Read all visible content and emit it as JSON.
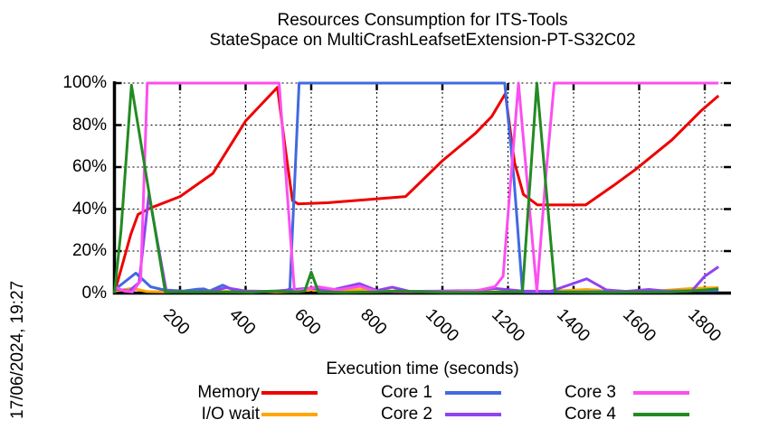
{
  "title": {
    "line1": "Resources Consumption for ITS-Tools",
    "line2": "StateSpace on MultiCrashLeafsetExtension-PT-S32C02"
  },
  "date_label": "17/06/2024, 19:27",
  "chart_data": {
    "type": "line",
    "title": "Resources Consumption for ITS-Tools — StateSpace on MultiCrashLeafsetExtension-PT-S32C02",
    "xlabel": "Execution time (seconds)",
    "ylabel": "",
    "xlim": [
      0,
      1880
    ],
    "ylim": [
      0,
      100
    ],
    "grid": true,
    "legend_position": "below",
    "x_ticks": [
      200,
      400,
      600,
      800,
      1000,
      1200,
      1400,
      1600,
      1800
    ],
    "y_ticks": [
      "0%",
      "20%",
      "40%",
      "60%",
      "80%",
      "100%"
    ],
    "y_tick_values": [
      0,
      20,
      40,
      60,
      80,
      100
    ],
    "series": [
      {
        "name": "Memory",
        "color": "#ee0000",
        "points": [
          [
            0,
            0
          ],
          [
            25,
            14
          ],
          [
            50,
            28
          ],
          [
            72,
            37.5
          ],
          [
            110,
            40.5
          ],
          [
            200,
            46
          ],
          [
            300,
            57
          ],
          [
            400,
            82
          ],
          [
            455,
            91
          ],
          [
            497,
            98
          ],
          [
            520,
            70
          ],
          [
            543,
            44
          ],
          [
            560,
            42.5
          ],
          [
            650,
            43
          ],
          [
            810,
            45
          ],
          [
            888,
            46
          ],
          [
            1000,
            63
          ],
          [
            1100,
            76
          ],
          [
            1150,
            84
          ],
          [
            1192,
            95
          ],
          [
            1220,
            62
          ],
          [
            1247,
            47
          ],
          [
            1290,
            42
          ],
          [
            1437,
            42
          ],
          [
            1520,
            51
          ],
          [
            1590,
            59
          ],
          [
            1700,
            73
          ],
          [
            1790,
            87
          ],
          [
            1842,
            94
          ]
        ]
      },
      {
        "name": "I/O wait",
        "color": "#ffa500",
        "points": [
          [
            0,
            1
          ],
          [
            55,
            2.2
          ],
          [
            100,
            0.7
          ],
          [
            160,
            0.5
          ],
          [
            230,
            1
          ],
          [
            300,
            0.7
          ],
          [
            420,
            1
          ],
          [
            490,
            0.5
          ],
          [
            560,
            0.7
          ],
          [
            600,
            1.6
          ],
          [
            680,
            1
          ],
          [
            748,
            1.6
          ],
          [
            850,
            1
          ],
          [
            1000,
            0.6
          ],
          [
            1100,
            0.5
          ],
          [
            1190,
            0.7
          ],
          [
            1290,
            0.5
          ],
          [
            1440,
            1.7
          ],
          [
            1530,
            0.6
          ],
          [
            1650,
            1
          ],
          [
            1760,
            2.2
          ],
          [
            1842,
            2.6
          ]
        ]
      },
      {
        "name": "Core 1",
        "color": "#4169e1",
        "points": [
          [
            0,
            1.5
          ],
          [
            65,
            9.5
          ],
          [
            110,
            3
          ],
          [
            150,
            1.5
          ],
          [
            210,
            1
          ],
          [
            250,
            1.8
          ],
          [
            273,
            2
          ],
          [
            290,
            1
          ],
          [
            330,
            3.8
          ],
          [
            370,
            1
          ],
          [
            420,
            0.8
          ],
          [
            470,
            0.8
          ],
          [
            520,
            1
          ],
          [
            535,
            2
          ],
          [
            563,
            100
          ],
          [
            1190,
            100
          ],
          [
            1218,
            55
          ],
          [
            1244,
            0.5
          ],
          [
            1400,
            0.5
          ],
          [
            1600,
            0.8
          ],
          [
            1842,
            1.2
          ]
        ]
      },
      {
        "name": "Core 2",
        "color": "#9143ef",
        "points": [
          [
            0,
            2
          ],
          [
            45,
            1
          ],
          [
            75,
            5
          ],
          [
            105,
            47
          ],
          [
            158,
            1
          ],
          [
            220,
            0.6
          ],
          [
            300,
            1
          ],
          [
            340,
            2.6
          ],
          [
            400,
            1
          ],
          [
            480,
            0.8
          ],
          [
            600,
            2.4
          ],
          [
            650,
            1
          ],
          [
            747,
            4.5
          ],
          [
            800,
            1.2
          ],
          [
            847,
            2.8
          ],
          [
            900,
            0.8
          ],
          [
            1000,
            1
          ],
          [
            1100,
            1.2
          ],
          [
            1160,
            2.2
          ],
          [
            1244,
            1
          ],
          [
            1330,
            0.8
          ],
          [
            1440,
            6.8
          ],
          [
            1500,
            1.5
          ],
          [
            1560,
            0.8
          ],
          [
            1630,
            1.7
          ],
          [
            1690,
            0.8
          ],
          [
            1760,
            1
          ],
          [
            1800,
            8
          ],
          [
            1842,
            12.5
          ]
        ]
      },
      {
        "name": "Core 3",
        "color": "#fb4ff0",
        "points": [
          [
            0,
            3
          ],
          [
            30,
            1
          ],
          [
            55,
            0.5
          ],
          [
            80,
            6
          ],
          [
            100,
            100
          ],
          [
            502,
            100
          ],
          [
            549,
            0.8
          ],
          [
            620,
            3
          ],
          [
            680,
            1.5
          ],
          [
            748,
            3.2
          ],
          [
            800,
            0.8
          ],
          [
            900,
            0.6
          ],
          [
            1000,
            0.6
          ],
          [
            1100,
            1
          ],
          [
            1160,
            3
          ],
          [
            1185,
            8
          ],
          [
            1232,
            100
          ],
          [
            1260,
            50
          ],
          [
            1288,
            1
          ],
          [
            1315,
            55
          ],
          [
            1341,
            100
          ],
          [
            1842,
            100
          ]
        ]
      },
      {
        "name": "Core 4",
        "color": "#228b22",
        "points": [
          [
            0,
            0
          ],
          [
            20,
            30
          ],
          [
            52,
            99
          ],
          [
            155,
            0.5
          ],
          [
            250,
            0.5
          ],
          [
            330,
            0.5
          ],
          [
            420,
            0.3
          ],
          [
            480,
            1
          ],
          [
            560,
            0.5
          ],
          [
            580,
            1
          ],
          [
            600,
            10
          ],
          [
            622,
            0.5
          ],
          [
            700,
            0.3
          ],
          [
            800,
            0.5
          ],
          [
            860,
            1
          ],
          [
            1000,
            0.3
          ],
          [
            1100,
            0.3
          ],
          [
            1190,
            0.5
          ],
          [
            1244,
            0.5
          ],
          [
            1288,
            100
          ],
          [
            1344,
            0.5
          ],
          [
            1500,
            0.3
          ],
          [
            1700,
            0.5
          ],
          [
            1800,
            1.5
          ],
          [
            1842,
            2
          ]
        ]
      }
    ]
  }
}
